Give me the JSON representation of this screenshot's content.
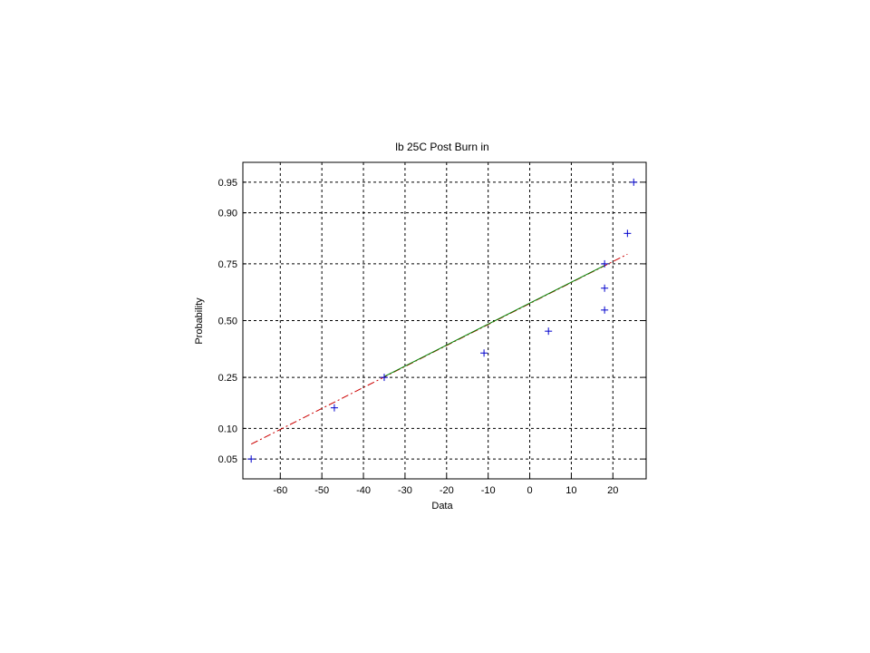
{
  "chart_data": {
    "type": "scatter",
    "title": "lb 25C Post Burn in",
    "xlabel": "Data",
    "ylabel": "Probability",
    "xlim": [
      -69,
      28
    ],
    "ylim": [
      0.03,
      0.97
    ],
    "y_scale": "normal-probability",
    "grid": true,
    "x_ticks": [
      -60,
      -50,
      -40,
      -30,
      -20,
      -10,
      0,
      10,
      20
    ],
    "x_tick_labels": [
      "-60",
      "-50",
      "-40",
      "-30",
      "-20",
      "-10",
      "0",
      "10",
      "20"
    ],
    "y_ticks": [
      0.05,
      0.1,
      0.25,
      0.5,
      0.75,
      0.9,
      0.95
    ],
    "y_tick_labels": [
      "0.05",
      "0.10",
      "0.25",
      "0.50",
      "0.75",
      "0.90",
      "0.95"
    ],
    "series": [
      {
        "kind": "points",
        "marker": "+",
        "color": "#0000cc",
        "x": [
          -67,
          -47,
          -35,
          -11,
          4.5,
          18,
          18,
          18,
          23.5,
          25
        ],
        "y": [
          0.05,
          0.15,
          0.25,
          0.35,
          0.45,
          0.55,
          0.65,
          0.75,
          0.85,
          0.95
        ]
      },
      {
        "kind": "line",
        "style": "dash-dot",
        "color": "#cc0000",
        "x": [
          -67,
          23.5
        ],
        "y": [
          0.071,
          0.785
        ]
      },
      {
        "kind": "line",
        "style": "solid",
        "color": "#008000",
        "x": [
          -35,
          18
        ],
        "y": [
          0.253,
          0.744
        ]
      }
    ]
  }
}
